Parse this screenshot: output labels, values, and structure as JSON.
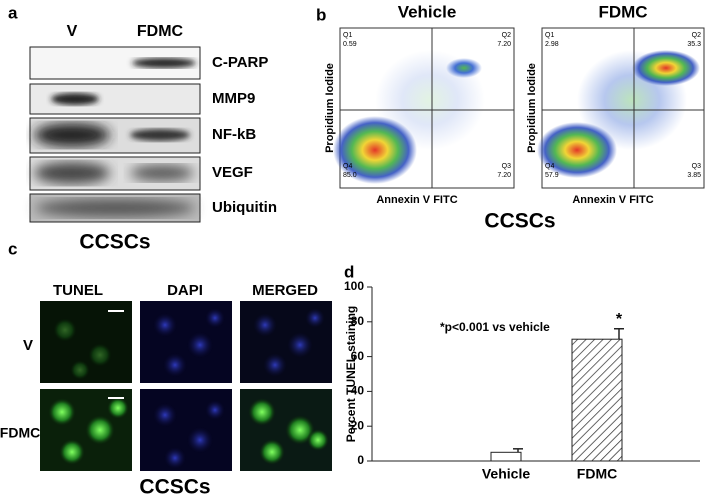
{
  "panel_a": {
    "letter": "a",
    "lanes": [
      "V",
      "FDMC"
    ],
    "proteins": [
      "C-PARP",
      "MMP9",
      "NF-kB",
      "VEGF",
      "Ubiquitin"
    ],
    "caption": "CCSCs"
  },
  "panel_b": {
    "letter": "b",
    "y_label": "Propidium Iodide",
    "x_label": "Annexin V FITC",
    "caption": "CCSCs",
    "plots": [
      {
        "title": "Vehicle",
        "quadrants": [
          {
            "name": "Q1",
            "value": "0.59"
          },
          {
            "name": "Q2",
            "value": "7.20"
          },
          {
            "name": "Q3",
            "value": "7.20"
          },
          {
            "name": "Q4",
            "value": "85.0"
          }
        ]
      },
      {
        "title": "FDMC",
        "quadrants": [
          {
            "name": "Q1",
            "value": "2.98"
          },
          {
            "name": "Q2",
            "value": "35.3"
          },
          {
            "name": "Q3",
            "value": "3.85"
          },
          {
            "name": "Q4",
            "value": "57.9"
          }
        ]
      }
    ]
  },
  "panel_c": {
    "letter": "c",
    "columns": [
      "TUNEL",
      "DAPI",
      "MERGED"
    ],
    "rows": [
      "V",
      "FDMC"
    ],
    "caption": "CCSCs"
  },
  "chart_data": {
    "type": "bar",
    "letter": "d",
    "ylabel": "Percent TUNEL staining",
    "annotation": "*p<0.001 vs vehicle",
    "categories": [
      "Vehicle",
      "FDMC"
    ],
    "values": [
      5,
      70
    ],
    "errors": [
      2,
      6
    ],
    "significance": [
      null,
      "*"
    ],
    "hatched": [
      false,
      true
    ],
    "ylim": [
      0,
      100
    ],
    "yticks": [
      0,
      20,
      40,
      60,
      80,
      100
    ]
  }
}
